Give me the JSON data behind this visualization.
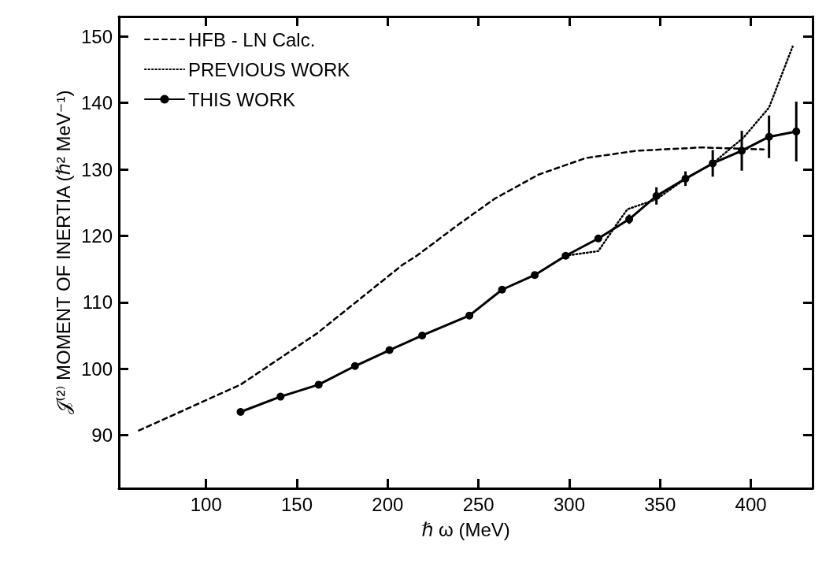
{
  "chart_data": {
    "type": "line",
    "xlabel": "ℏ ω (MeV)",
    "ylabel": "𝒥⁽²⁾ MOMENT OF INERTIA (ℏ² MeV⁻¹)",
    "xlim": [
      52,
      434
    ],
    "xticks": [
      100,
      150,
      200,
      250,
      300,
      350,
      400
    ],
    "ylim": [
      82,
      153
    ],
    "yticks": [
      90,
      100,
      110,
      120,
      130,
      140,
      150
    ],
    "grid": false,
    "legend": "top left",
    "series": [
      {
        "name": "HFB - LN Calc.",
        "color": "#000000",
        "line_style": "dashed",
        "marker": "none",
        "x": [
          63,
          119,
          161,
          208,
          216,
          239,
          259,
          283,
          309,
          337,
          373,
          407
        ],
        "values": [
          90.7,
          97.6,
          105.3,
          115.6,
          117,
          121.7,
          125.6,
          129.2,
          131.7,
          132.8,
          133.3,
          133
        ]
      },
      {
        "name": "PREVIOUS WORK",
        "color": "#000000",
        "line_style": "dotted",
        "marker": "none",
        "x": [
          298,
          316,
          326,
          332,
          348,
          364,
          379,
          396,
          410,
          423
        ],
        "values": [
          117,
          117.7,
          121.7,
          124,
          125.5,
          128.6,
          130.9,
          134.8,
          139.3,
          148.5
        ]
      },
      {
        "name": "THIS WORK",
        "color": "#000000",
        "line_style": "solid",
        "marker": "circle",
        "x": [
          119,
          141,
          162,
          182,
          201,
          219,
          245,
          263,
          281,
          298,
          316,
          333,
          348,
          364,
          379,
          395,
          410,
          425
        ],
        "values": [
          93.5,
          95.8,
          97.6,
          100.4,
          102.8,
          105,
          108,
          111.9,
          114.1,
          117,
          119.6,
          122.5,
          126,
          128.6,
          130.9,
          132.8,
          134.9,
          135.7
        ],
        "errors": [
          null,
          null,
          null,
          null,
          null,
          null,
          null,
          null,
          null,
          null,
          null,
          0.7,
          1.3,
          1.1,
          2,
          3,
          3.2,
          4.5
        ]
      }
    ]
  }
}
